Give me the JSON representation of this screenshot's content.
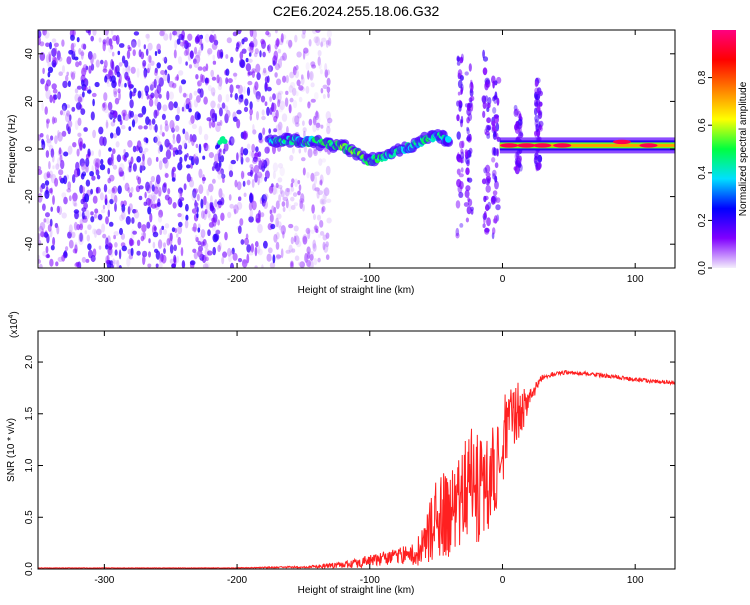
{
  "page": {
    "title": "C2E6.2024.255.18.06.G32"
  },
  "chart_data": [
    {
      "type": "heatmap",
      "xlabel": "Height of straight line (km)",
      "ylabel": "Frequency (Hz)",
      "xlim": [
        -350,
        130
      ],
      "ylim": [
        -50,
        50
      ],
      "xticks": [
        -300,
        -200,
        -100,
        0,
        100
      ],
      "xtick_labels": [
        "-300",
        "-200",
        "-100",
        "0",
        "100"
      ],
      "yticks": [
        -40,
        -20,
        0,
        20,
        40
      ],
      "ytick_labels": [
        "-40",
        "-20",
        "0",
        "20",
        "40"
      ],
      "colorbar": {
        "label": "Normalized spectral amplitude",
        "range": [
          0,
          1
        ],
        "ticks": [
          0.0,
          0.2,
          0.4,
          0.6,
          0.8
        ],
        "tick_labels": [
          "0.0",
          "0.2",
          "0.4",
          "0.6",
          "0.8"
        ],
        "colors": [
          "#f4eefc",
          "#8000ff",
          "#0000ff",
          "#00e0ff",
          "#00ff40",
          "#ffff00",
          "#ff8000",
          "#ff0000",
          "#ff0080"
        ]
      },
      "noise_region": {
        "x_range": [
          -350,
          -150
        ],
        "freq_range": [
          -50,
          50
        ],
        "amplitude": 0.15
      },
      "ridge": [
        {
          "x": -175,
          "freq": 3,
          "amplitude": 0.35
        },
        {
          "x": -160,
          "freq": 4,
          "amplitude": 0.45
        },
        {
          "x": -150,
          "freq": 3,
          "amplitude": 0.45
        },
        {
          "x": -140,
          "freq": 3,
          "amplitude": 0.45
        },
        {
          "x": -130,
          "freq": 2,
          "amplitude": 0.5
        },
        {
          "x": -120,
          "freq": 1,
          "amplitude": 0.5
        },
        {
          "x": -110,
          "freq": -2,
          "amplitude": 0.5
        },
        {
          "x": -100,
          "freq": -5,
          "amplitude": 0.5
        },
        {
          "x": -92,
          "freq": -4,
          "amplitude": 0.45
        },
        {
          "x": -85,
          "freq": -2,
          "amplitude": 0.4
        },
        {
          "x": -75,
          "freq": 0,
          "amplitude": 0.4
        },
        {
          "x": -65,
          "freq": 2,
          "amplitude": 0.4
        },
        {
          "x": -55,
          "freq": 5,
          "amplitude": 0.45
        },
        {
          "x": -45,
          "freq": 5,
          "amplitude": 0.4
        },
        {
          "x": -40,
          "freq": 3,
          "amplitude": 0.35
        }
      ],
      "isolated_patch": {
        "x": -210,
        "freq": 4,
        "amplitude": 0.45
      },
      "strong_band": {
        "x_range": [
          -2,
          130
        ],
        "freq": 1.5,
        "amplitude": 0.95
      },
      "strong_band_peaks": [
        {
          "x": 5,
          "freq": 1.5
        },
        {
          "x": 18,
          "freq": 1.5
        },
        {
          "x": 30,
          "freq": 1.5
        },
        {
          "x": 45,
          "freq": 1.5
        },
        {
          "x": 90,
          "freq": 3
        },
        {
          "x": 110,
          "freq": 1.5
        }
      ],
      "vertical_streaks": [
        {
          "x": -32,
          "freq_range": [
            -40,
            40
          ]
        },
        {
          "x": -25,
          "freq_range": [
            -30,
            35
          ]
        },
        {
          "x": -12,
          "freq_range": [
            -35,
            40
          ]
        },
        {
          "x": -5,
          "freq_range": [
            -40,
            35
          ]
        },
        {
          "x": 12,
          "freq_range": [
            -10,
            18
          ]
        },
        {
          "x": 27,
          "freq_range": [
            -8,
            30
          ]
        }
      ]
    },
    {
      "type": "line",
      "xlabel": "Height of straight line (km)",
      "ylabel": "SNR (10 * v/v)",
      "multiplier_label": "(x10",
      "multiplier_exponent": "4",
      "xlim": [
        -350,
        130
      ],
      "ylim": [
        0,
        2.3
      ],
      "xticks": [
        -300,
        -200,
        -100,
        0,
        100
      ],
      "xtick_labels": [
        "-300",
        "-200",
        "-100",
        "0",
        "100"
      ],
      "yticks": [
        0,
        0.5,
        1.0,
        1.5,
        2.0
      ],
      "ytick_labels": [
        "0.0",
        "0.5",
        "1.0",
        "1.5",
        "2.0"
      ],
      "series": [
        {
          "color": "#ff2020",
          "x": [
            -350,
            -300,
            -250,
            -200,
            -150,
            -120,
            -110,
            -100,
            -90,
            -80,
            -70,
            -60,
            -55,
            -50,
            -45,
            -40,
            -35,
            -30,
            -25,
            -20,
            -15,
            -10,
            -5,
            0,
            5,
            10,
            15,
            20,
            25,
            30,
            40,
            50,
            60,
            70,
            80,
            90,
            100,
            110,
            120,
            130
          ],
          "y": [
            0.01,
            0.01,
            0.01,
            0.01,
            0.02,
            0.04,
            0.06,
            0.08,
            0.1,
            0.12,
            0.15,
            0.2,
            0.35,
            0.5,
            0.55,
            0.5,
            0.6,
            0.7,
            0.85,
            0.8,
            0.75,
            0.9,
            1.0,
            1.2,
            1.45,
            1.5,
            1.55,
            1.62,
            1.75,
            1.86,
            1.89,
            1.9,
            1.89,
            1.88,
            1.86,
            1.85,
            1.83,
            1.82,
            1.81,
            1.8
          ],
          "jitter": [
            0.002,
            0.002,
            0.002,
            0.003,
            0.01,
            0.03,
            0.05,
            0.06,
            0.07,
            0.08,
            0.1,
            0.2,
            0.3,
            0.4,
            0.45,
            0.45,
            0.45,
            0.5,
            0.55,
            0.55,
            0.5,
            0.5,
            0.45,
            0.5,
            0.4,
            0.3,
            0.25,
            0.1,
            0.05,
            0.03,
            0.02,
            0.02,
            0.02,
            0.02,
            0.02,
            0.02,
            0.02,
            0.02,
            0.02,
            0.02
          ]
        }
      ]
    }
  ]
}
